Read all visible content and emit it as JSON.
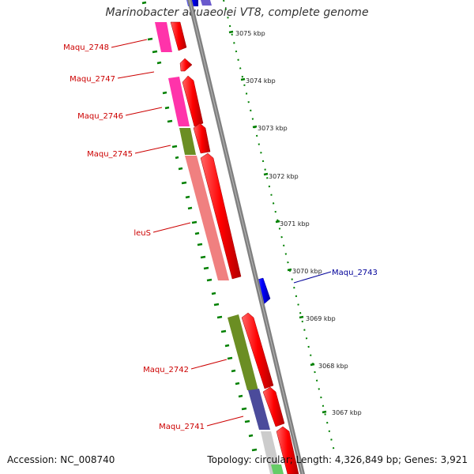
{
  "title": "Marinobacter aquaeolei VT8, complete genome",
  "footer": {
    "accession": "Accession: NC_008740",
    "summary": "Topology: circular; Length: 4,326,849 bp; Genes: 3,921"
  },
  "colors": {
    "background": "#ffffff",
    "backbone": "#888888",
    "forward_arrow": "#ff0000",
    "reverse_arrow": "#0000ff",
    "magenta_cog": "#ff33aa",
    "olive_cog": "#6b8e23",
    "salmon_cog": "#f08080",
    "slate_cog": "#4b4b9b",
    "gc_ticks": "#008000",
    "label_red": "#cc0000",
    "label_blue": "#000099"
  },
  "ruler": {
    "ticks": [
      {
        "label": "3075 kbp"
      },
      {
        "label": "3074 kbp"
      },
      {
        "label": "3073 kbp"
      },
      {
        "label": "3072 kbp"
      },
      {
        "label": "3071 kbp"
      },
      {
        "label": "3070 kbp"
      },
      {
        "label": "3069 kbp"
      },
      {
        "label": "3068 kbp"
      },
      {
        "label": "3067 kbp"
      }
    ]
  },
  "genes": [
    {
      "name": "Maqu_2748",
      "strand": "forward",
      "cog_color": "magenta"
    },
    {
      "name": "Maqu_2747",
      "strand": "forward",
      "cog_color": "none"
    },
    {
      "name": "Maqu_2746",
      "strand": "forward",
      "cog_color": "magenta"
    },
    {
      "name": "Maqu_2745",
      "strand": "forward",
      "cog_color": "olive"
    },
    {
      "name": "leuS",
      "strand": "forward",
      "cog_color": "salmon"
    },
    {
      "name": "Maqu_2743",
      "strand": "reverse",
      "cog_color": "none"
    },
    {
      "name": "Maqu_2742",
      "strand": "forward",
      "cog_color": "olive"
    },
    {
      "name": "Maqu_2741",
      "strand": "forward",
      "cog_color": "slate"
    }
  ]
}
